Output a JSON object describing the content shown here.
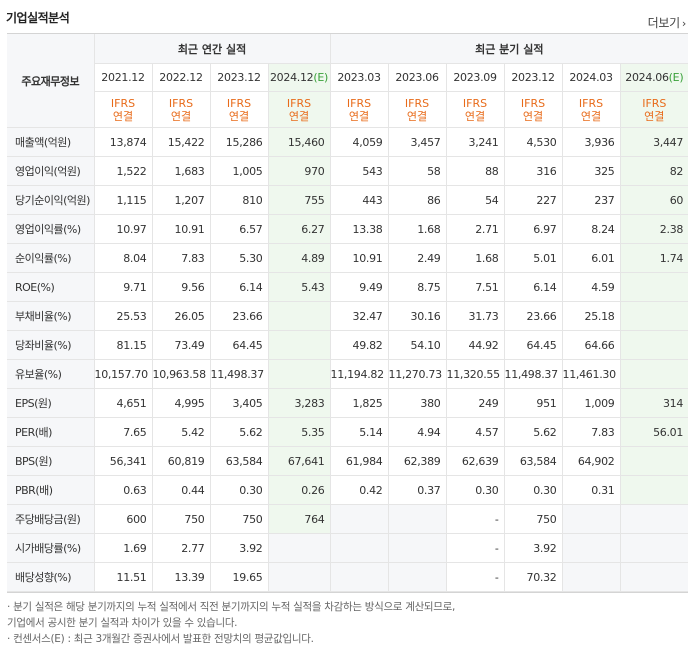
{
  "title": "기업실적분석",
  "more_label": "더보기",
  "header": {
    "label": "주요재무정보",
    "annual_group": "최근 연간 실적",
    "quarter_group": "최근 분기 실적",
    "estimate_mark": "(E)",
    "annual_periods": [
      "2021.12",
      "2022.12",
      "2023.12",
      "2024.12"
    ],
    "quarter_periods": [
      "2023.03",
      "2023.06",
      "2023.09",
      "2023.12",
      "2024.03",
      "2024.06"
    ],
    "ifrs_line1": "IFRS",
    "ifrs_line2": "연결"
  },
  "rows": [
    {
      "label": "매출액(억원)",
      "values": [
        "13,874",
        "15,422",
        "15,286",
        "15,460",
        "4,059",
        "3,457",
        "3,241",
        "4,530",
        "3,936",
        "3,447"
      ]
    },
    {
      "label": "영업이익(억원)",
      "values": [
        "1,522",
        "1,683",
        "1,005",
        "970",
        "543",
        "58",
        "88",
        "316",
        "325",
        "82"
      ]
    },
    {
      "label": "당기순이익(억원)",
      "values": [
        "1,115",
        "1,207",
        "810",
        "755",
        "443",
        "86",
        "54",
        "227",
        "237",
        "60"
      ]
    },
    {
      "label": "영업이익률(%)",
      "values": [
        "10.97",
        "10.91",
        "6.57",
        "6.27",
        "13.38",
        "1.68",
        "2.71",
        "6.97",
        "8.24",
        "2.38"
      ]
    },
    {
      "label": "순이익률(%)",
      "values": [
        "8.04",
        "7.83",
        "5.30",
        "4.89",
        "10.91",
        "2.49",
        "1.68",
        "5.01",
        "6.01",
        "1.74"
      ]
    },
    {
      "label": "ROE(%)",
      "values": [
        "9.71",
        "9.56",
        "6.14",
        "5.43",
        "9.49",
        "8.75",
        "7.51",
        "6.14",
        "4.59",
        ""
      ]
    },
    {
      "label": "부채비율(%)",
      "values": [
        "25.53",
        "26.05",
        "23.66",
        "",
        "32.47",
        "30.16",
        "31.73",
        "23.66",
        "25.18",
        ""
      ]
    },
    {
      "label": "당좌비율(%)",
      "values": [
        "81.15",
        "73.49",
        "64.45",
        "",
        "49.82",
        "54.10",
        "44.92",
        "64.45",
        "64.66",
        ""
      ]
    },
    {
      "label": "유보율(%)",
      "values": [
        "10,157.70",
        "10,963.58",
        "11,498.37",
        "",
        "11,194.82",
        "11,270.73",
        "11,320.55",
        "11,498.37",
        "11,461.30",
        ""
      ]
    },
    {
      "label": "EPS(원)",
      "values": [
        "4,651",
        "4,995",
        "3,405",
        "3,283",
        "1,825",
        "380",
        "249",
        "951",
        "1,009",
        "314"
      ]
    },
    {
      "label": "PER(배)",
      "values": [
        "7.65",
        "5.42",
        "5.62",
        "5.35",
        "5.14",
        "4.94",
        "4.57",
        "5.62",
        "7.83",
        "56.01"
      ]
    },
    {
      "label": "BPS(원)",
      "values": [
        "56,341",
        "60,819",
        "63,584",
        "67,641",
        "61,984",
        "62,389",
        "62,639",
        "63,584",
        "64,902",
        ""
      ]
    },
    {
      "label": "PBR(배)",
      "values": [
        "0.63",
        "0.44",
        "0.30",
        "0.26",
        "0.42",
        "0.37",
        "0.30",
        "0.30",
        "0.31",
        ""
      ]
    },
    {
      "label": "주당배당금(원)",
      "values": [
        "600",
        "750",
        "750",
        "764",
        "",
        "",
        "-",
        "750",
        "",
        ""
      ]
    },
    {
      "label": "시가배당률(%)",
      "values": [
        "1.69",
        "2.77",
        "3.92",
        "",
        "",
        "",
        "-",
        "3.92",
        "",
        ""
      ]
    },
    {
      "label": "배당성향(%)",
      "values": [
        "11.51",
        "13.39",
        "19.65",
        "",
        "",
        "",
        "-",
        "70.32",
        "",
        ""
      ]
    }
  ],
  "notes": [
    "· 분기 실적은 해당 분기까지의 누적 실적에서 직전 분기까지의 누적 실적을 차감하는 방식으로 계산되므로,",
    "  기업에서 공시한 분기 실적과 차이가 있을 수 있습니다.",
    "· 컨센서스(E) : 최근 3개월간 증권사에서 발표한 전망치의 평균값입니다."
  ]
}
